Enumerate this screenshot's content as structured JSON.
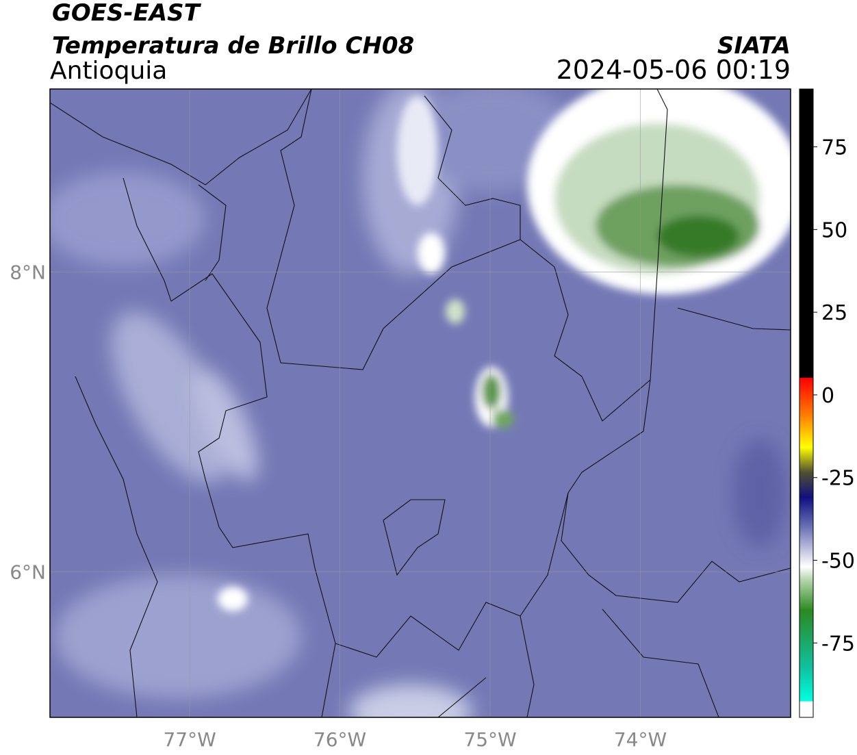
{
  "chart_data": {
    "type": "map",
    "title": "GOES-EAST",
    "subtitle": "Temperatura de Brillo CH08",
    "region": "Antioquia",
    "source": "SIATA",
    "timestamp": "2024-05-06 00:19",
    "xlim": [
      -77.93,
      -73.0
    ],
    "ylim": [
      5.03,
      9.22
    ],
    "xticks": [
      {
        "value": -77,
        "label": "77°W"
      },
      {
        "value": -76,
        "label": "76°W"
      },
      {
        "value": -75,
        "label": "75°W"
      },
      {
        "value": -74,
        "label": "74°W"
      }
    ],
    "yticks": [
      {
        "value": 6,
        "label": "6°N"
      },
      {
        "value": 8,
        "label": "8°N"
      }
    ],
    "grid": true,
    "colorbar": {
      "lim": [
        -97.5,
        92.5
      ],
      "ticks": [
        75,
        50,
        25,
        0,
        -25,
        -50,
        -75
      ]
    }
  }
}
